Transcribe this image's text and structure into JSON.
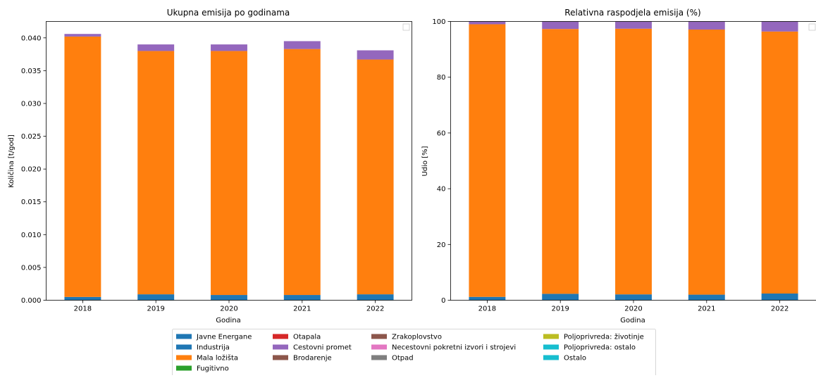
{
  "chart_data": [
    {
      "type": "bar",
      "stacked": true,
      "title": "Ukupna emisija po godinama",
      "xlabel": "Godina",
      "ylabel": "Količina [t/god]",
      "categories": [
        "2018",
        "2019",
        "2020",
        "2021",
        "2022"
      ],
      "ylim": [
        0,
        0.0425
      ],
      "yticks": [
        "0.000",
        "0.005",
        "0.010",
        "0.015",
        "0.020",
        "0.025",
        "0.030",
        "0.035",
        "0.040"
      ],
      "grid": false,
      "series": [
        {
          "name": "Javne Energane",
          "color": "#1f77b4",
          "values": [
            0.0005,
            0.0009,
            0.0008,
            0.0008,
            0.0009
          ]
        },
        {
          "name": "Mala ložišta",
          "color": "#ff7f0e",
          "values": [
            0.0397,
            0.0371,
            0.0372,
            0.0375,
            0.0358
          ]
        },
        {
          "name": "Cestovni promet",
          "color": "#9467bd",
          "values": [
            0.0004,
            0.001,
            0.001,
            0.0012,
            0.0014
          ]
        }
      ]
    },
    {
      "type": "bar",
      "stacked": true,
      "title": "Relativna raspodjela emisija (%)",
      "xlabel": "Godina",
      "ylabel": "Udio [%]",
      "categories": [
        "2018",
        "2019",
        "2020",
        "2021",
        "2022"
      ],
      "ylim": [
        0,
        100
      ],
      "yticks": [
        "0",
        "20",
        "40",
        "60",
        "80",
        "100"
      ],
      "grid": false,
      "series": [
        {
          "name": "Javne Energane",
          "color": "#1f77b4",
          "values": [
            1.2,
            2.3,
            2.1,
            2.0,
            2.4
          ]
        },
        {
          "name": "Mala ložišta",
          "color": "#ff7f0e",
          "values": [
            97.8,
            95.0,
            95.3,
            95.1,
            94.0
          ]
        },
        {
          "name": "Cestovni promet",
          "color": "#9467bd",
          "values": [
            1.0,
            2.7,
            2.6,
            2.9,
            3.6
          ]
        }
      ]
    }
  ],
  "legend": {
    "placement": "bottom-center",
    "columns": [
      [
        {
          "label": "Javne Energane",
          "color": "#1f77b4"
        },
        {
          "label": "Industrija",
          "color": "#1f77b4"
        },
        {
          "label": "Mala ložišta",
          "color": "#ff7f0e"
        },
        {
          "label": "Fugitivno",
          "color": "#2ca02c"
        }
      ],
      [
        {
          "label": "Otapala",
          "color": "#d62728"
        },
        {
          "label": "Cestovni promet",
          "color": "#9467bd"
        },
        {
          "label": "Brodarenje",
          "color": "#8c564b"
        }
      ],
      [
        {
          "label": "Zrakoplovstvo",
          "color": "#8c564b"
        },
        {
          "label": "Necestovni pokretni izvori i strojevi",
          "color": "#e377c2"
        },
        {
          "label": "Otpad",
          "color": "#7f7f7f"
        }
      ],
      [
        {
          "label": "Poljoprivreda: životinje",
          "color": "#bcbd22"
        },
        {
          "label": "Poljoprivreda: ostalo",
          "color": "#17becf"
        },
        {
          "label": "Ostalo",
          "color": "#17becf"
        }
      ]
    ]
  }
}
